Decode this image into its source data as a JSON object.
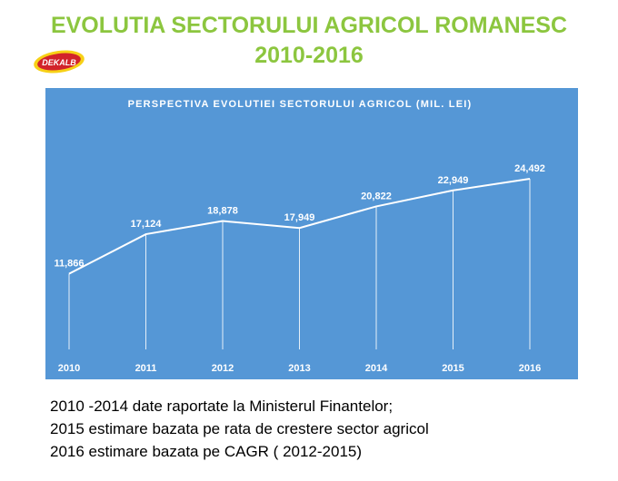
{
  "slide": {
    "title": [
      "EVOLUTIA SECTORULUI AGRICOL ROMANESC",
      "2010-2016"
    ],
    "logo": "DEKALB",
    "notes": [
      "2010 -2014 date raportate la Ministerul Finantelor;",
      "2015 estimare bazata pe rata de crestere sector agricol",
      "2016 estimare bazata pe CAGR ( 2012-2015)"
    ]
  },
  "chart_data": {
    "type": "line",
    "title": "PERSPECTIVA EVOLUTIEI SECTORULUI AGRICOL (MIL. LEI)",
    "categories": [
      "2010",
      "2011",
      "2012",
      "2013",
      "2014",
      "2015",
      "2016"
    ],
    "values": [
      11866,
      17124,
      18878,
      17949,
      20822,
      22949,
      24492
    ],
    "value_labels": [
      "11,866",
      "17,124",
      "18,878",
      "17,949",
      "20,822",
      "22,949",
      "24,492"
    ],
    "color": "#ffffff",
    "background": "#5597d6"
  }
}
